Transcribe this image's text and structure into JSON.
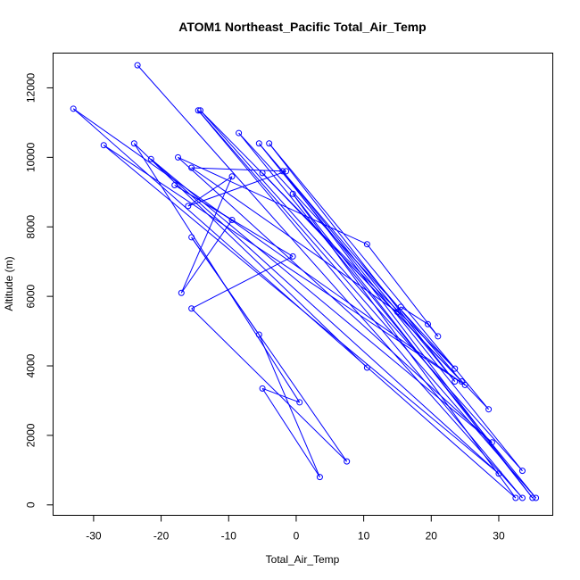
{
  "chart_data": {
    "type": "line",
    "title": "ATOM1 Northeast_Pacific Total_Air_Temp",
    "xlabel": "Total_Air_Temp",
    "ylabel": "Altitude (m)",
    "xlim": [
      -36,
      38
    ],
    "ylim": [
      -300,
      13000
    ],
    "xticks": [
      -30,
      -20,
      -10,
      0,
      10,
      20,
      30
    ],
    "yticks": [
      0,
      2000,
      4000,
      6000,
      8000,
      10000,
      12000
    ],
    "color": "#0000ff",
    "grid": false,
    "series": [
      {
        "points": [
          [
            -23.5,
            12650
          ],
          [
            33.5,
            200
          ],
          [
            -14.5,
            11350
          ],
          [
            35.5,
            200
          ],
          [
            -8.5,
            10700
          ],
          [
            23.5,
            3920
          ],
          [
            -14.2,
            11350
          ],
          [
            33.5,
            980
          ],
          [
            -5.5,
            10400
          ],
          [
            24.5,
            3550
          ],
          [
            -5,
            9550
          ],
          [
            28.5,
            2750
          ],
          [
            -4,
            10400
          ],
          [
            23.5,
            3550
          ],
          [
            -2,
            9600
          ],
          [
            35,
            200
          ],
          [
            -0.5,
            8950
          ],
          [
            32.5,
            200
          ],
          [
            -33,
            11400
          ],
          [
            25,
            3450
          ],
          [
            -28.5,
            10350
          ],
          [
            30,
            900
          ],
          [
            -21.5,
            9950
          ],
          [
            29,
            1800
          ],
          [
            -17.5,
            10000
          ],
          [
            10.5,
            7500
          ],
          [
            21,
            4850
          ],
          [
            19.5,
            5200
          ],
          [
            15.5,
            5700
          ],
          [
            15,
            5550
          ],
          [
            -15.5,
            9700
          ],
          [
            -1.5,
            9600
          ],
          [
            -16,
            8600
          ],
          [
            -9.5,
            9450
          ],
          [
            -17,
            6100
          ],
          [
            -9.5,
            8200
          ],
          [
            -18,
            9200
          ],
          [
            -0.5,
            7150
          ],
          [
            -15.5,
            5650
          ],
          [
            7.5,
            1250
          ],
          [
            -15.5,
            7700
          ],
          [
            -5.5,
            4900
          ],
          [
            3.5,
            800
          ],
          [
            -5,
            3350
          ],
          [
            0.5,
            2950
          ],
          [
            -24,
            10400
          ],
          [
            10.5,
            3950
          ]
        ]
      }
    ]
  }
}
